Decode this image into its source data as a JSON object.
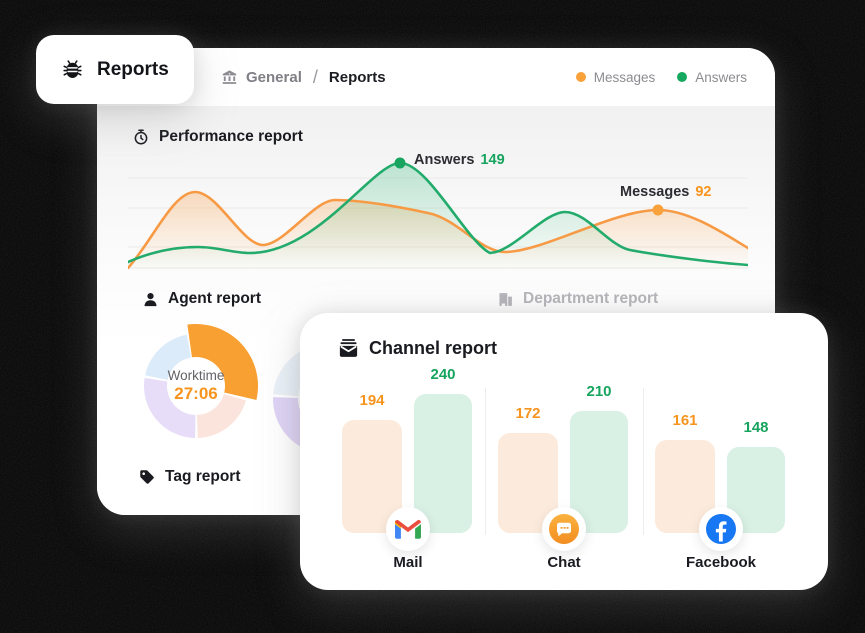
{
  "reports_tab": {
    "label": "Reports"
  },
  "breadcrumb": {
    "section": "General",
    "separator": "/",
    "current": "Reports"
  },
  "legend": {
    "messages": "Messages",
    "answers": "Answers"
  },
  "sections": {
    "performance": {
      "title": "Performance report"
    },
    "agent": {
      "title": "Agent report"
    },
    "department": {
      "title": "Department report"
    },
    "channel": {
      "title": "Channel report"
    },
    "tag": {
      "title": "Tag report"
    }
  },
  "channel_categories": [
    {
      "label": "Mail",
      "icon": "gmail-icon"
    },
    {
      "label": "Chat",
      "icon": "chat-bubble-icon"
    },
    {
      "label": "Facebook",
      "icon": "facebook-icon"
    }
  ],
  "colors": {
    "accent_orange": "#F7941E",
    "accent_green": "#16A45E",
    "bar_orange_fill": "#FCEBDC",
    "bar_green_fill": "#D9F0E4",
    "facebook_blue": "#1877F2",
    "chat_orange": "#F9A23C"
  },
  "chart_data": [
    {
      "id": "performance",
      "type": "area",
      "title": "Performance report",
      "grid": "faint-horizontal",
      "legend_position": "top-right",
      "series": [
        {
          "name": "Messages",
          "color": "#F89B3C",
          "approx_values": [
            5,
            120,
            38,
            108,
            95,
            30,
            70,
            92,
            40
          ]
        },
        {
          "name": "Answers",
          "color": "#23AB6C",
          "approx_values": [
            10,
            33,
            25,
            90,
            149,
            30,
            88,
            18,
            6
          ]
        }
      ],
      "annotations": [
        {
          "series": "Answers",
          "label": "Answers",
          "value": 149
        },
        {
          "series": "Messages",
          "label": "Messages",
          "value": 92
        }
      ]
    },
    {
      "id": "agent_worktime_donut",
      "type": "pie",
      "title": "Agent report",
      "center_label": "Worktime",
      "center_value": "27:06",
      "slices": [
        {
          "label": "worktime",
          "color": "#F9A033",
          "start_deg": -8,
          "end_deg": 103,
          "emphasis": true
        },
        {
          "label": "segment-2",
          "color": "#FBE4DB",
          "start_deg": 106,
          "end_deg": 178
        },
        {
          "label": "segment-3",
          "color": "#E7DDF8",
          "start_deg": 181,
          "end_deg": 279
        },
        {
          "label": "segment-4",
          "color": "#DCEBFA",
          "start_deg": 282,
          "end_deg": 350
        }
      ]
    },
    {
      "id": "agent_secondary_donut",
      "type": "pie",
      "title": "",
      "slices": [
        {
          "label": "segment-1",
          "color": "#EAF1F8",
          "start_deg": -85,
          "end_deg": 72
        },
        {
          "label": "segment-2",
          "color": "#F7ECE6",
          "start_deg": 75,
          "end_deg": 178
        },
        {
          "label": "segment-3",
          "color": "#DFD3F6",
          "start_deg": 181,
          "end_deg": 272
        }
      ]
    },
    {
      "id": "channel",
      "type": "bar",
      "title": "Channel report",
      "categories": [
        "Mail",
        "Chat",
        "Facebook"
      ],
      "series": [
        {
          "name": "Messages",
          "color": "#F7941E",
          "bar_fill": "#FCEBDC",
          "values": [
            194,
            172,
            161
          ]
        },
        {
          "name": "Answers",
          "color": "#16A45E",
          "bar_fill": "#D9F0E4",
          "values": [
            240,
            210,
            148
          ]
        }
      ],
      "value_labels": true
    }
  ]
}
